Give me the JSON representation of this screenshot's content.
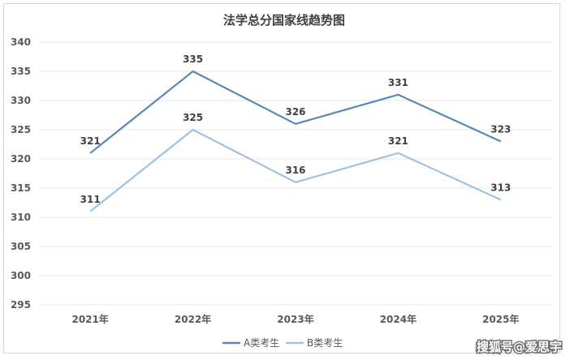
{
  "chart_data": {
    "type": "line",
    "title": "法学总分国家线趋势图",
    "categories": [
      "2021年",
      "2022年",
      "2023年",
      "2024年",
      "2025年"
    ],
    "series": [
      {
        "name": "A类考生",
        "values": [
          321,
          335,
          326,
          331,
          323
        ],
        "color": "#5b87b5"
      },
      {
        "name": "B类考生",
        "values": [
          311,
          325,
          316,
          321,
          313
        ],
        "color": "#9fc2e0"
      }
    ],
    "ylim": [
      295,
      340
    ],
    "yticks": [
      295,
      300,
      305,
      310,
      315,
      320,
      325,
      330,
      335,
      340
    ],
    "grid": true,
    "legend": "bottom"
  },
  "watermark": "搜狐号@爱思宇"
}
